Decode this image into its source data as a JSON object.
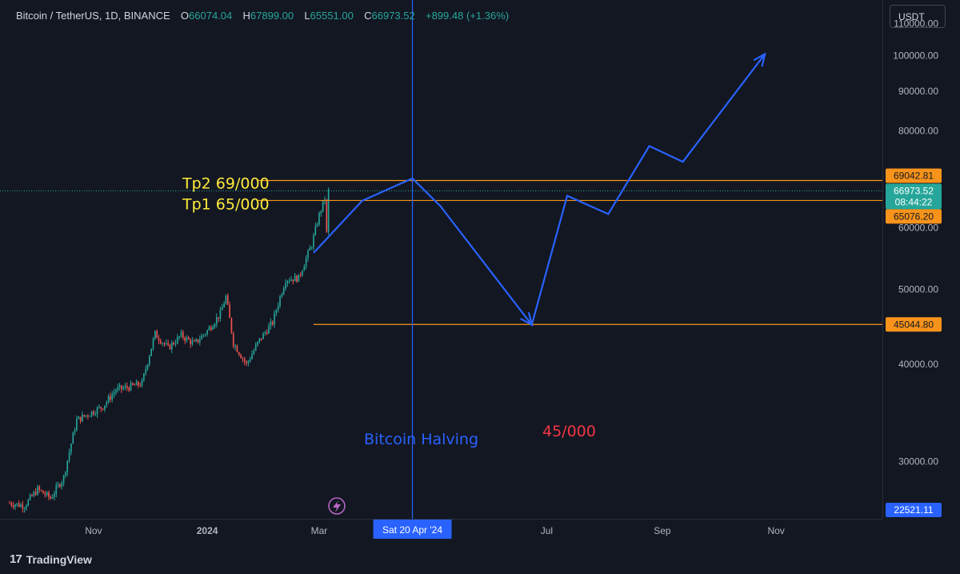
{
  "legend": {
    "symbol": "Bitcoin / TetherUS, 1D, BINANCE",
    "open_label": "O",
    "open": "66074.04",
    "high_label": "H",
    "high": "67899.00",
    "low_label": "L",
    "low": "65551.00",
    "close_label": "C",
    "close": "66973.52",
    "change": "+899.48 (+1.36%)"
  },
  "currency_button": "USDT",
  "brand": "TradingView",
  "colors": {
    "background": "#131722",
    "up": "#26a69a",
    "down": "#ef5350",
    "projection": "#2962ff",
    "level": "#f7931a",
    "annotation_yellow": "#ffeb3b",
    "annotation_red": "#f23645"
  },
  "chart_data": {
    "type": "line",
    "symbol": "BTCUSDT",
    "interval": "1D",
    "exchange": "BINANCE",
    "y_scale": "log",
    "ylim": [
      25300,
      118000
    ],
    "xlim": [
      "2023-09-17",
      "2024-12-28"
    ],
    "x_ticks": [
      {
        "date": "2023-11-01",
        "label": "Nov"
      },
      {
        "date": "2024-01-01",
        "label": "2024"
      },
      {
        "date": "2024-03-01",
        "label": "Mar"
      },
      {
        "date": "2024-07-01",
        "label": "Jul"
      },
      {
        "date": "2024-09-01",
        "label": "Sep"
      },
      {
        "date": "2024-11-01",
        "label": "Nov"
      }
    ],
    "y_ticks": [
      {
        "value": 30000,
        "label": "30000.00"
      },
      {
        "value": 40000,
        "label": "40000.00"
      },
      {
        "value": 50000,
        "label": "50000.00"
      },
      {
        "value": 60000,
        "label": "60000.00"
      },
      {
        "value": 80000,
        "label": "80000.00"
      },
      {
        "value": 90000,
        "label": "90000.00"
      },
      {
        "value": 100000,
        "label": "100000.00"
      },
      {
        "value": 110000,
        "label": "110000.00"
      }
    ],
    "price_series": {
      "points": [
        [
          "2023-09-17",
          26500
        ],
        [
          "2023-09-25",
          26300
        ],
        [
          "2023-10-02",
          27600
        ],
        [
          "2023-10-09",
          26900
        ],
        [
          "2023-10-16",
          28600
        ],
        [
          "2023-10-23",
          33900
        ],
        [
          "2023-10-30",
          34600
        ],
        [
          "2023-11-06",
          35300
        ],
        [
          "2023-11-13",
          37100
        ],
        [
          "2023-11-20",
          37400
        ],
        [
          "2023-11-27",
          37800
        ],
        [
          "2023-12-04",
          43800
        ],
        [
          "2023-12-11",
          42000
        ],
        [
          "2023-12-18",
          43600
        ],
        [
          "2023-12-25",
          42500
        ],
        [
          "2024-01-01",
          44200
        ],
        [
          "2024-01-08",
          46500
        ],
        [
          "2024-01-11",
          48900
        ],
        [
          "2024-01-15",
          42600
        ],
        [
          "2024-01-22",
          40000
        ],
        [
          "2024-01-29",
          43000
        ],
        [
          "2024-02-05",
          45300
        ],
        [
          "2024-02-12",
          51500
        ],
        [
          "2024-02-19",
          51700
        ],
        [
          "2024-02-26",
          57100
        ],
        [
          "2024-03-01",
          62300
        ],
        [
          "2024-03-04",
          65500
        ],
        [
          "2024-03-05",
          59000
        ],
        [
          "2024-03-06",
          66900
        ]
      ]
    },
    "horizontal_levels": [
      {
        "value": 69042.81,
        "label": "69042.81"
      },
      {
        "value": 65076.2,
        "label": "65076.20"
      },
      {
        "value": 45044.8,
        "label": "45044.80"
      }
    ],
    "current_price": {
      "value": 66973.52,
      "label": "66973.52",
      "countdown": "08:44:22"
    },
    "crosshair": {
      "date": "2024-04-20",
      "date_label": "Sat 20 Apr '24",
      "value": 22521.11,
      "value_label": "22521.11"
    },
    "projection_path": [
      [
        "2024-02-27",
        55700
      ],
      [
        "2024-03-24",
        65000
      ],
      [
        "2024-04-20",
        69500
      ],
      [
        "2024-05-05",
        64000
      ],
      [
        "2024-06-23",
        45000
      ],
      [
        "2024-07-12",
        66000
      ],
      [
        "2024-08-03",
        62500
      ],
      [
        "2024-08-25",
        76500
      ],
      [
        "2024-09-12",
        73000
      ],
      [
        "2024-10-26",
        100500
      ]
    ],
    "annotations": [
      {
        "text": "Tp2 69/000"
      },
      {
        "text": "Tp1 65/000"
      },
      {
        "text": "Bitcoin Halving"
      },
      {
        "text": "45/000"
      }
    ],
    "grid": false,
    "legend": "top-left"
  }
}
